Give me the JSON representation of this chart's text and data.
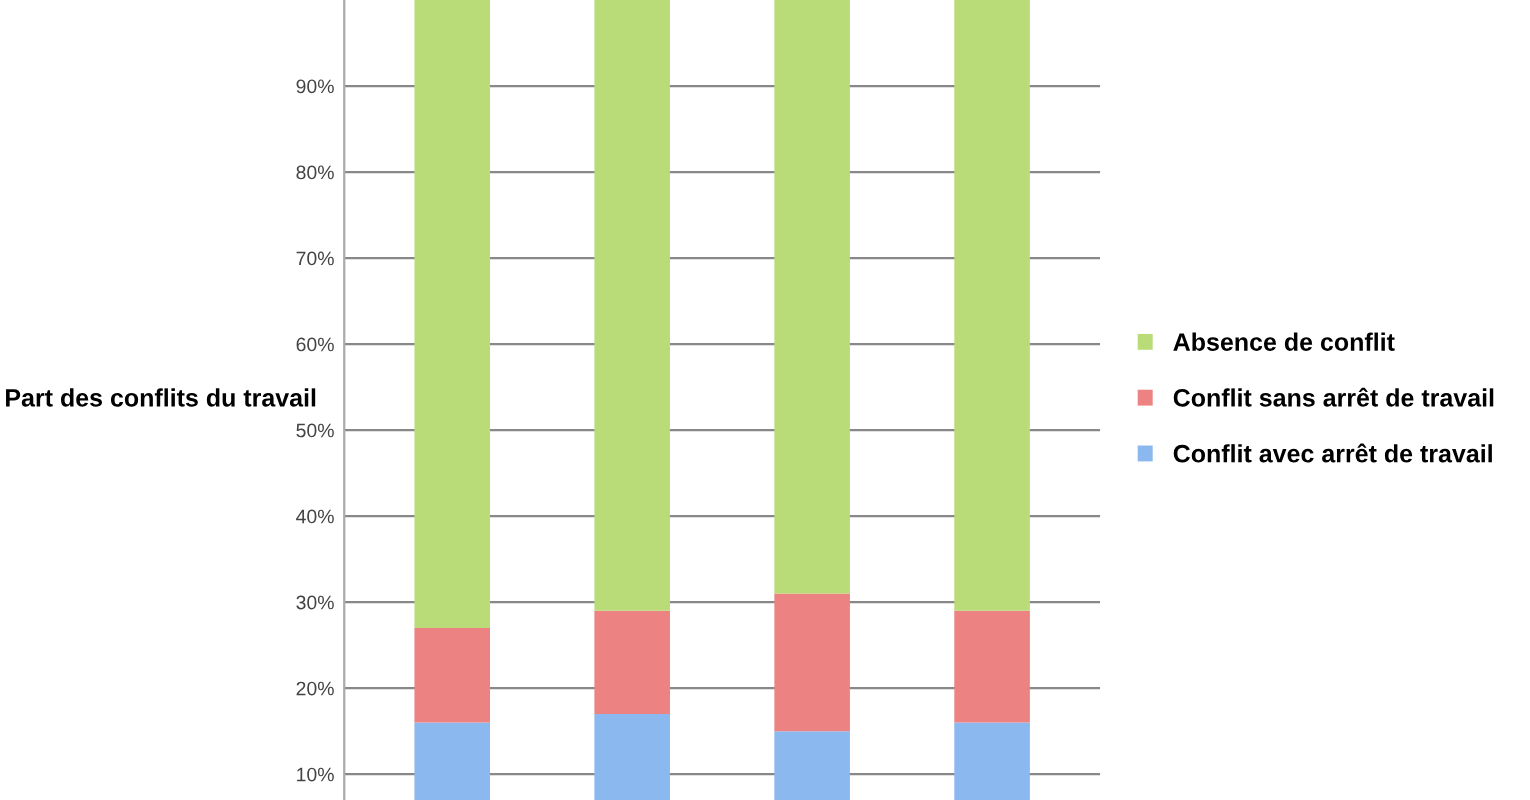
{
  "chart_data": {
    "type": "bar",
    "stacked": true,
    "ylabel": "Part des conflits du travail",
    "categories": [
      null,
      null,
      null,
      null
    ],
    "series": [
      {
        "name": "Conflit avec arrêt de travail",
        "color": "#8ab8ef",
        "values": [
          16,
          17,
          15,
          16
        ]
      },
      {
        "name": "Conflit sans arrêt de travail",
        "color": "#ec8282",
        "values": [
          11,
          12,
          16,
          13
        ]
      },
      {
        "name": "Absence de conflit",
        "color": "#b9dc78",
        "values": [
          73,
          71,
          69,
          71
        ]
      }
    ],
    "ylim": [
      7,
      100
    ],
    "yticks": [
      {
        "value": 10,
        "label": "10%"
      },
      {
        "value": 20,
        "label": "20%"
      },
      {
        "value": 30,
        "label": "30%"
      },
      {
        "value": 40,
        "label": "40%"
      },
      {
        "value": 50,
        "label": "50%"
      },
      {
        "value": 60,
        "label": "60%"
      },
      {
        "value": 70,
        "label": "70%"
      },
      {
        "value": 80,
        "label": "80%"
      },
      {
        "value": 90,
        "label": "90%"
      }
    ],
    "grid": "y",
    "legend": "right"
  }
}
